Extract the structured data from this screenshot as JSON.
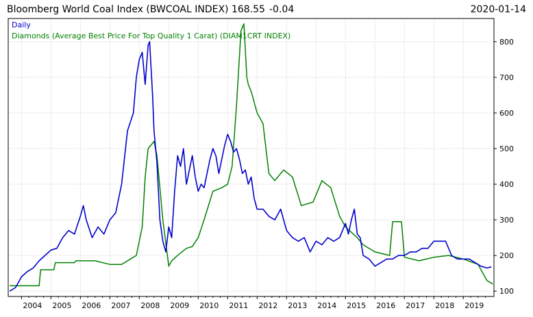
{
  "header": {
    "title": "Bloomberg World Coal Index (BWCOAL INDEX) 168.55",
    "change": "-0.04",
    "change_color": "#ff0000",
    "date": "2020-01-14"
  },
  "legend": {
    "frequency": "Daily",
    "frequency_color": "#0000cc",
    "secondary": "Diamonds (Average Best Price For Top Quality 1 Carat)  (DIAM1CRT INDEX)",
    "secondary_color": "#008000"
  },
  "chart_data": {
    "type": "line",
    "xlim": [
      2003.55,
      2020.04
    ],
    "ylim": [
      85,
      865
    ],
    "x_tick_labels": [
      "2004",
      "2005",
      "2006",
      "2007",
      "2008",
      "2009",
      "2010",
      "2011",
      "2012",
      "2013",
      "2014",
      "2015",
      "2016",
      "2017",
      "2018",
      "2019"
    ],
    "x_tick_values": [
      2004,
      2005,
      2006,
      2007,
      2008,
      2009,
      2010,
      2011,
      2012,
      2013,
      2014,
      2015,
      2016,
      2017,
      2018,
      2019
    ],
    "y_ticks": [
      100,
      200,
      300,
      400,
      500,
      600,
      700,
      800
    ],
    "grid": true,
    "series": [
      {
        "name": "Bloomberg World Coal Index (BWCOAL INDEX)",
        "color": "#0000cc",
        "x": [
          2003.6,
          2003.8,
          2004.0,
          2004.2,
          2004.4,
          2004.6,
          2004.8,
          2005.0,
          2005.2,
          2005.4,
          2005.6,
          2005.8,
          2006.0,
          2006.1,
          2006.2,
          2006.4,
          2006.6,
          2006.8,
          2007.0,
          2007.2,
          2007.4,
          2007.6,
          2007.8,
          2007.9,
          2008.0,
          2008.1,
          2008.2,
          2008.3,
          2008.35,
          2008.45,
          2008.5,
          2008.6,
          2008.7,
          2008.8,
          2008.9,
          2009.0,
          2009.1,
          2009.2,
          2009.3,
          2009.4,
          2009.5,
          2009.6,
          2009.7,
          2009.8,
          2009.9,
          2010.0,
          2010.1,
          2010.2,
          2010.3,
          2010.4,
          2010.5,
          2010.6,
          2010.7,
          2010.8,
          2010.9,
          2011.0,
          2011.1,
          2011.2,
          2011.3,
          2011.4,
          2011.5,
          2011.6,
          2011.7,
          2011.8,
          2011.9,
          2012.0,
          2012.2,
          2012.4,
          2012.6,
          2012.8,
          2013.0,
          2013.2,
          2013.4,
          2013.6,
          2013.8,
          2014.0,
          2014.2,
          2014.4,
          2014.6,
          2014.8,
          2015.0,
          2015.1,
          2015.2,
          2015.3,
          2015.4,
          2015.5,
          2015.6,
          2015.8,
          2016.0,
          2016.2,
          2016.4,
          2016.6,
          2016.8,
          2017.0,
          2017.2,
          2017.4,
          2017.6,
          2017.8,
          2018.0,
          2018.2,
          2018.4,
          2018.6,
          2018.8,
          2019.0,
          2019.2,
          2019.4,
          2019.6,
          2019.8,
          2019.95
        ],
        "values": [
          100,
          110,
          140,
          155,
          165,
          185,
          200,
          215,
          220,
          250,
          270,
          260,
          310,
          340,
          300,
          250,
          280,
          260,
          300,
          320,
          400,
          550,
          600,
          700,
          750,
          770,
          680,
          790,
          800,
          650,
          550,
          460,
          300,
          240,
          210,
          280,
          250,
          380,
          480,
          450,
          500,
          400,
          440,
          480,
          420,
          380,
          400,
          390,
          430,
          470,
          500,
          480,
          430,
          470,
          510,
          540,
          520,
          490,
          500,
          470,
          430,
          440,
          400,
          420,
          360,
          330,
          330,
          310,
          300,
          330,
          270,
          250,
          240,
          250,
          210,
          240,
          230,
          250,
          240,
          250,
          290,
          260,
          300,
          330,
          260,
          250,
          200,
          190,
          170,
          180,
          190,
          190,
          200,
          200,
          210,
          210,
          220,
          220,
          240,
          240,
          240,
          200,
          190,
          190,
          190,
          180,
          170,
          165,
          168
        ]
      },
      {
        "name": "Diamonds (Average Best Price For Top Quality 1 Carat)",
        "color": "#008000",
        "x": [
          2003.6,
          2004.0,
          2004.1,
          2004.6,
          2004.65,
          2005.1,
          2005.15,
          2005.8,
          2005.85,
          2006.5,
          2007.0,
          2007.4,
          2007.5,
          2007.7,
          2007.9,
          2008.1,
          2008.2,
          2008.3,
          2008.5,
          2008.6,
          2008.8,
          2009.0,
          2009.1,
          2009.3,
          2009.6,
          2009.8,
          2010.0,
          2010.2,
          2010.5,
          2010.8,
          2011.0,
          2011.15,
          2011.3,
          2011.45,
          2011.55,
          2011.65,
          2011.7,
          2011.8,
          2012.0,
          2012.2,
          2012.4,
          2012.6,
          2012.9,
          2013.2,
          2013.5,
          2013.9,
          2014.2,
          2014.5,
          2014.8,
          2015.0,
          2015.4,
          2015.6,
          2016.0,
          2016.5,
          2016.6,
          2016.9,
          2017.0,
          2017.5,
          2018.0,
          2018.5,
          2019.0,
          2019.5,
          2019.8,
          2020.0
        ],
        "values": [
          115,
          115,
          115,
          115,
          160,
          160,
          180,
          180,
          185,
          185,
          175,
          175,
          180,
          190,
          200,
          280,
          420,
          500,
          520,
          480,
          300,
          170,
          185,
          200,
          220,
          225,
          250,
          300,
          380,
          390,
          400,
          450,
          620,
          830,
          850,
          700,
          680,
          660,
          600,
          570,
          430,
          410,
          440,
          420,
          340,
          350,
          410,
          390,
          310,
          280,
          250,
          230,
          210,
          200,
          295,
          295,
          195,
          185,
          195,
          200,
          190,
          175,
          130,
          120
        ]
      }
    ]
  }
}
